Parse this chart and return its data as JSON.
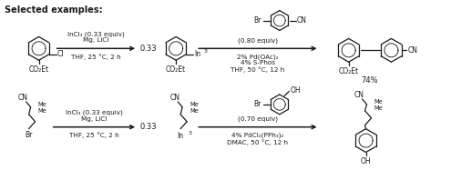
{
  "title": "Selected examples:",
  "title_fontsize": 7.0,
  "title_weight": "bold",
  "bg_color": "#ffffff",
  "line_color": "#1a1a1a",
  "text_color": "#1a1a1a",
  "reaction1": {
    "arrow1_label_top": "Mg, LiCl",
    "arrow1_label_mid": "InCl₃ (0.33 equiv)",
    "arrow1_label_bot": "THF, 25 °C, 2 h",
    "stoich1": "0.33",
    "reagent1_line1": "(0.80 equiv)",
    "reagent1_line2": "2% Pd(OAc)₂",
    "reagent1_line3": "4% S-Phos",
    "reagent1_line4": "THF, 50 °C, 12 h",
    "yield": "74%"
  },
  "reaction2": {
    "arrow1_label_top": "Mg, LiCl",
    "arrow1_label_mid": "InCl₃ (0.33 equiv)",
    "arrow1_label_bot": "THF, 25 °C, 2 h",
    "stoich1": "0.33",
    "reagent2_line1": "(0.70 equiv)",
    "reagent2_line2": "4% PdCl₂(PPh₃)₂",
    "reagent2_line3": "DMAC, 50 °C, 12 h"
  },
  "font_sizes": {
    "arrow_label": 5.2,
    "stoich": 6.0,
    "yield": 6.0,
    "structure": 5.5,
    "subscript": 4.5
  }
}
